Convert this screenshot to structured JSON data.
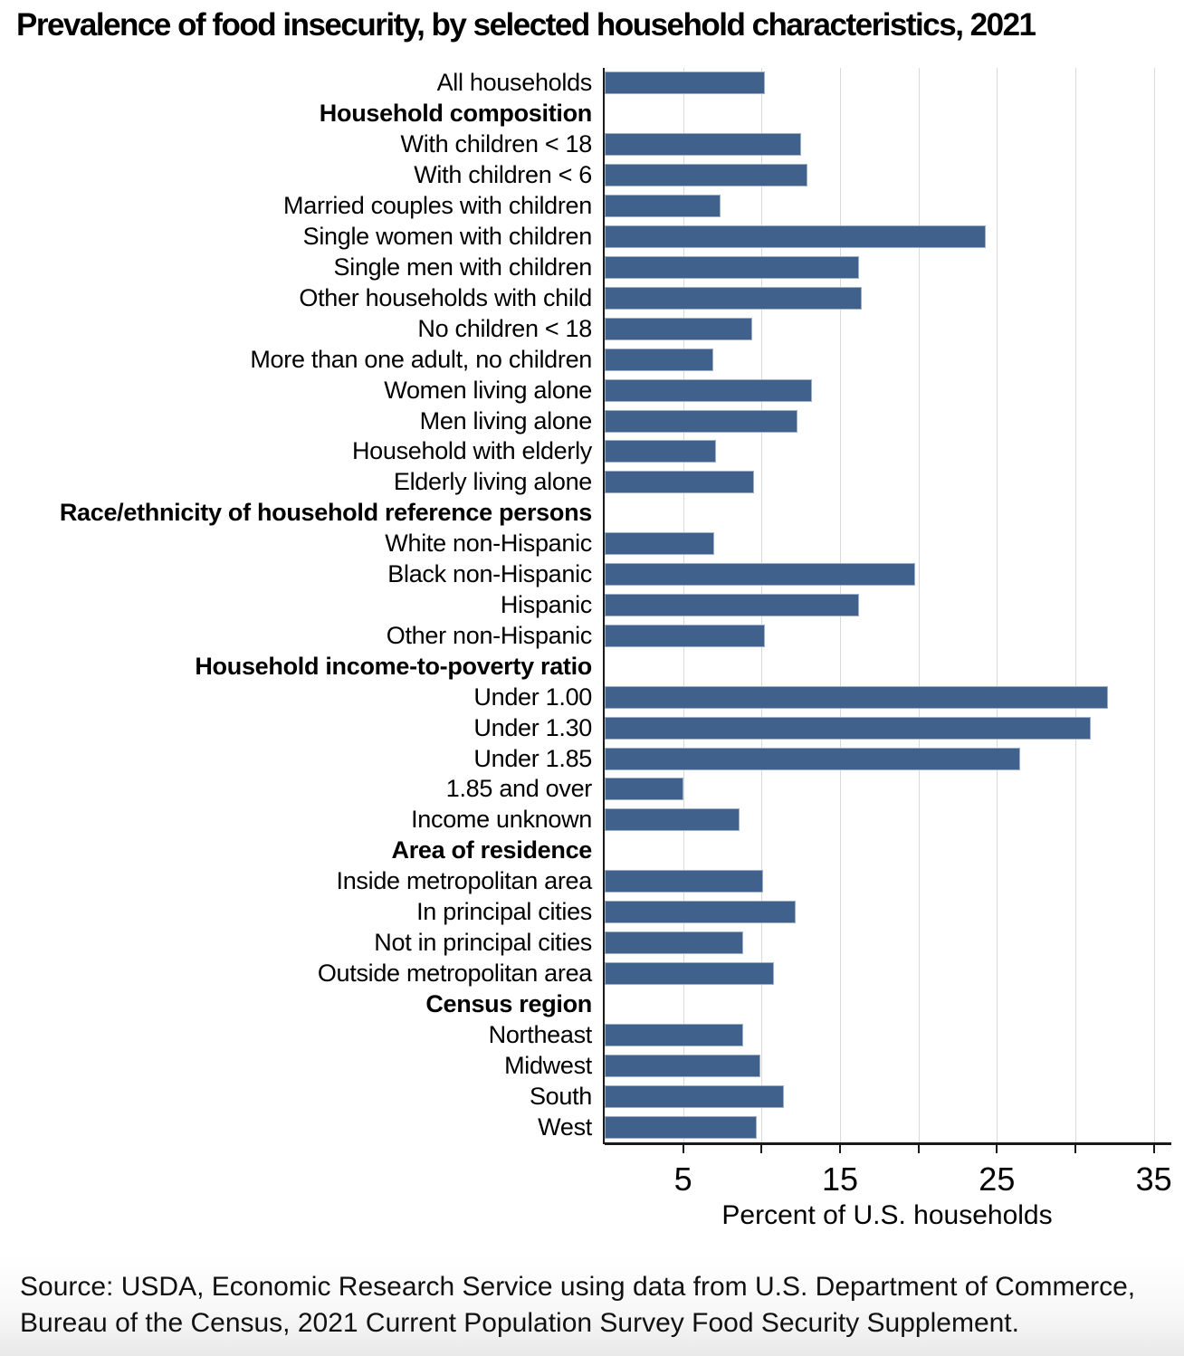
{
  "title": "Prevalence of food insecurity, by selected household characteristics, 2021",
  "source": "Source: USDA, Economic Research Service using data from U.S. Department of Commerce, Bureau of the Census, 2021 Current Population Survey Food Security Supplement.",
  "chart_data": {
    "type": "bar",
    "orientation": "horizontal",
    "title": "Prevalence of food insecurity, by selected household characteristics, 2021",
    "xlabel": "Percent of U.S. households",
    "xlim": [
      0,
      36
    ],
    "grid": "vertical",
    "gridline_values": [
      5,
      10,
      15,
      20,
      25,
      30,
      35
    ],
    "tick_values": [
      5,
      10,
      15,
      20,
      25,
      30,
      35
    ],
    "tick_label_values": [
      5,
      15,
      25,
      35
    ],
    "bar_color": "#41618D",
    "bar_edge_color": "#9DB0C9",
    "gridline_color": "#d9d9d9",
    "axis_color": "#1a1a1a",
    "rows": [
      {
        "label": "All households",
        "value": 10.2,
        "header": false
      },
      {
        "label": "Household composition",
        "value": null,
        "header": true
      },
      {
        "label": "With children < 18",
        "value": 12.5,
        "header": false
      },
      {
        "label": "With children < 6",
        "value": 12.9,
        "header": false
      },
      {
        "label": "Married couples with children",
        "value": 7.4,
        "header": false
      },
      {
        "label": "Single women with children",
        "value": 24.3,
        "header": false
      },
      {
        "label": "Single men with children",
        "value": 16.2,
        "header": false
      },
      {
        "label": "Other households with child",
        "value": 16.4,
        "header": false
      },
      {
        "label": "No children < 18",
        "value": 9.4,
        "header": false
      },
      {
        "label": "More than one adult, no children",
        "value": 6.9,
        "header": false
      },
      {
        "label": "Women living alone",
        "value": 13.2,
        "header": false
      },
      {
        "label": "Men living alone",
        "value": 12.3,
        "header": false
      },
      {
        "label": "Household with elderly",
        "value": 7.1,
        "header": false
      },
      {
        "label": "Elderly living alone",
        "value": 9.5,
        "header": false
      },
      {
        "label": "Race/ethnicity of household reference persons",
        "value": null,
        "header": true
      },
      {
        "label": "White non-Hispanic",
        "value": 7.0,
        "header": false
      },
      {
        "label": "Black non-Hispanic",
        "value": 19.8,
        "header": false
      },
      {
        "label": "Hispanic",
        "value": 16.2,
        "header": false
      },
      {
        "label": "Other non-Hispanic",
        "value": 10.2,
        "header": false
      },
      {
        "label": "Household income-to-poverty ratio",
        "value": null,
        "header": true
      },
      {
        "label": "Under 1.00",
        "value": 32.1,
        "header": false
      },
      {
        "label": "Under 1.30",
        "value": 31.0,
        "header": false
      },
      {
        "label": "Under 1.85",
        "value": 26.5,
        "header": false
      },
      {
        "label": "1.85 and over",
        "value": 5.0,
        "header": false
      },
      {
        "label": "Income unknown",
        "value": 8.6,
        "header": false
      },
      {
        "label": "Area of residence",
        "value": null,
        "header": true
      },
      {
        "label": "Inside metropolitan area",
        "value": 10.1,
        "header": false
      },
      {
        "label": "In principal cities",
        "value": 12.2,
        "header": false
      },
      {
        "label": "Not in principal cities",
        "value": 8.8,
        "header": false
      },
      {
        "label": "Outside metropolitan area",
        "value": 10.8,
        "header": false
      },
      {
        "label": "Census region",
        "value": null,
        "header": true
      },
      {
        "label": "Northeast",
        "value": 8.8,
        "header": false
      },
      {
        "label": "Midwest",
        "value": 9.9,
        "header": false
      },
      {
        "label": "South",
        "value": 11.4,
        "header": false
      },
      {
        "label": "West",
        "value": 9.7,
        "header": false
      }
    ]
  }
}
